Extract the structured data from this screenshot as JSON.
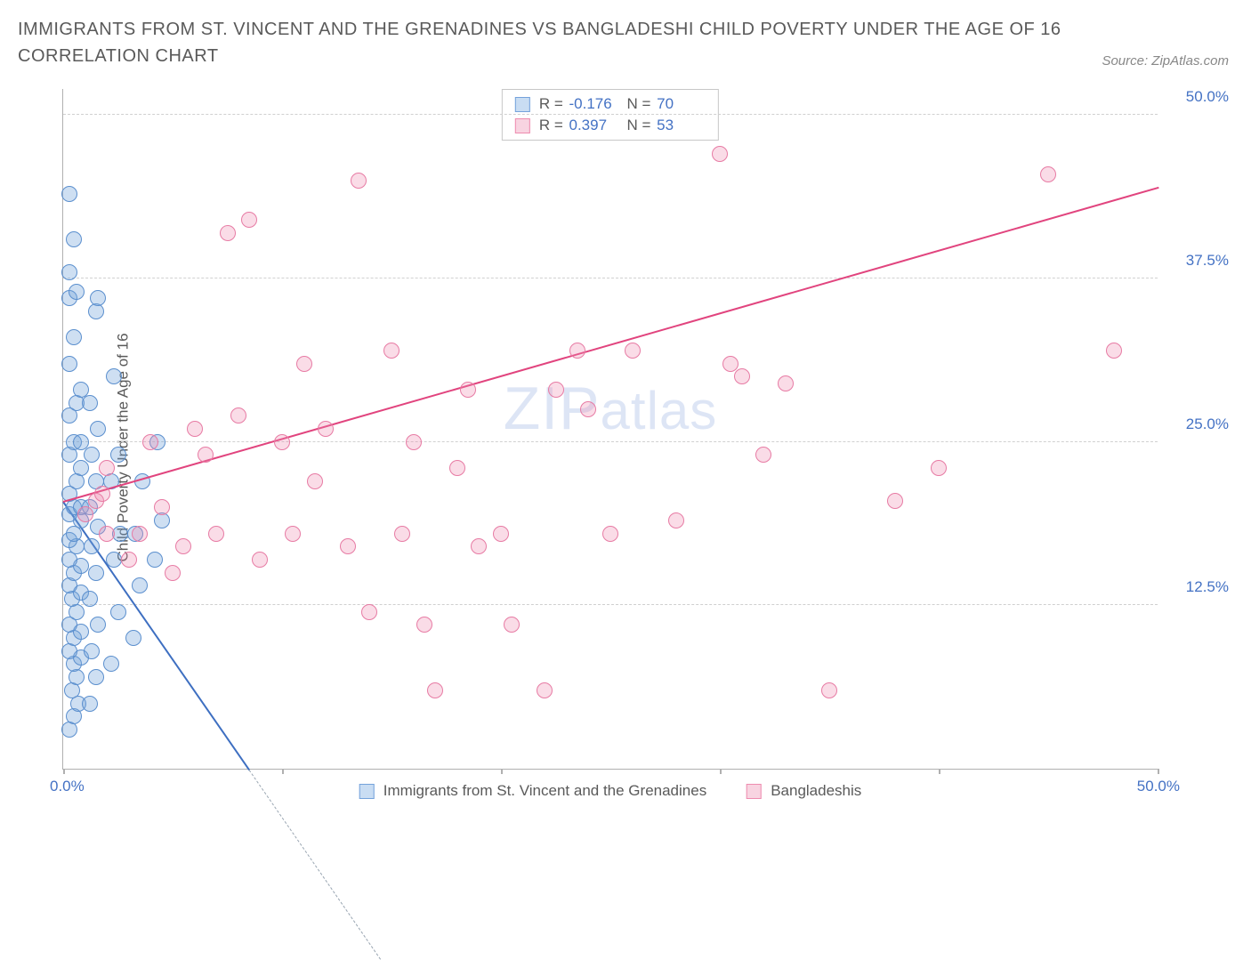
{
  "title": "IMMIGRANTS FROM ST. VINCENT AND THE GRENADINES VS BANGLADESHI CHILD POVERTY UNDER THE AGE OF 16 CORRELATION CHART",
  "source": "Source: ZipAtlas.com",
  "ylabel": "Child Poverty Under the Age of 16",
  "watermark_a": "ZIP",
  "watermark_b": "atlas",
  "chart": {
    "type": "scatter",
    "xlim": [
      0,
      50
    ],
    "ylim": [
      0,
      52
    ],
    "xticks_pct": [
      0,
      10,
      20,
      30,
      40,
      50
    ],
    "xlabel_zero": "0.0%",
    "xlabel_max": "50.0%",
    "yticks": [
      {
        "v": 12.5,
        "label": "12.5%"
      },
      {
        "v": 25.0,
        "label": "25.0%"
      },
      {
        "v": 37.5,
        "label": "37.5%"
      },
      {
        "v": 50.0,
        "label": "50.0%"
      }
    ],
    "grid_color": "#d0d0d0",
    "background_color": "#ffffff",
    "axis_color": "#b0b0b0",
    "tick_label_color": "#4472c4",
    "marker_radius": 9,
    "marker_stroke": 1.5,
    "series": [
      {
        "id": "svg_series",
        "label": "Immigrants from St. Vincent and the Grenadines",
        "fill": "rgba(116,162,219,0.35)",
        "stroke": "#5b8fce",
        "swatch_fill": "#c9ddf3",
        "swatch_stroke": "#74a2db",
        "R": "-0.176",
        "N": "70",
        "trend": {
          "x1": 0,
          "y1": 20.5,
          "x2": 8.5,
          "y2": 0,
          "color": "#3e6fc1",
          "dash_extend_x2": 8.5
        },
        "points": [
          [
            0.3,
            3
          ],
          [
            0.5,
            4
          ],
          [
            0.7,
            5
          ],
          [
            0.4,
            6
          ],
          [
            0.6,
            7
          ],
          [
            0.5,
            8
          ],
          [
            0.8,
            8.5
          ],
          [
            0.3,
            9
          ],
          [
            0.5,
            10
          ],
          [
            0.8,
            10.5
          ],
          [
            0.3,
            11
          ],
          [
            0.6,
            12
          ],
          [
            0.4,
            13
          ],
          [
            0.8,
            13.5
          ],
          [
            0.3,
            14
          ],
          [
            0.5,
            15
          ],
          [
            0.8,
            15.5
          ],
          [
            0.3,
            16
          ],
          [
            0.6,
            17
          ],
          [
            0.3,
            17.5
          ],
          [
            0.5,
            18
          ],
          [
            0.8,
            19
          ],
          [
            0.3,
            19.5
          ],
          [
            0.5,
            20
          ],
          [
            0.8,
            20
          ],
          [
            0.3,
            21
          ],
          [
            0.6,
            22
          ],
          [
            0.8,
            23
          ],
          [
            0.3,
            24
          ],
          [
            0.5,
            25
          ],
          [
            0.8,
            25
          ],
          [
            0.3,
            27
          ],
          [
            0.6,
            28
          ],
          [
            0.8,
            29
          ],
          [
            0.3,
            31
          ],
          [
            0.5,
            33
          ],
          [
            0.3,
            36
          ],
          [
            0.6,
            36.5
          ],
          [
            0.3,
            38
          ],
          [
            0.5,
            40.5
          ],
          [
            0.3,
            44
          ],
          [
            1.2,
            5
          ],
          [
            1.5,
            7
          ],
          [
            1.3,
            9
          ],
          [
            1.6,
            11
          ],
          [
            1.2,
            13
          ],
          [
            1.5,
            15
          ],
          [
            1.3,
            17
          ],
          [
            1.6,
            18.5
          ],
          [
            1.2,
            20
          ],
          [
            1.5,
            22
          ],
          [
            1.3,
            24
          ],
          [
            1.6,
            26
          ],
          [
            1.2,
            28
          ],
          [
            1.5,
            35
          ],
          [
            1.6,
            36
          ],
          [
            2.2,
            8
          ],
          [
            2.5,
            12
          ],
          [
            2.3,
            16
          ],
          [
            2.6,
            18
          ],
          [
            2.2,
            22
          ],
          [
            2.5,
            24
          ],
          [
            2.3,
            30
          ],
          [
            3.2,
            10
          ],
          [
            3.5,
            14
          ],
          [
            3.3,
            18
          ],
          [
            3.6,
            22
          ],
          [
            4.2,
            16
          ],
          [
            4.5,
            19
          ],
          [
            4.3,
            25
          ]
        ]
      },
      {
        "id": "bangladeshi_series",
        "label": "Bangladeshis",
        "fill": "rgba(238,140,175,0.3)",
        "stroke": "#e77ba4",
        "swatch_fill": "#f8d4e1",
        "swatch_stroke": "#ee8caf",
        "R": "0.397",
        "N": "53",
        "trend": {
          "x1": 0,
          "y1": 20.5,
          "x2": 50,
          "y2": 44.5,
          "color": "#e1447e"
        },
        "points": [
          [
            1,
            19.5
          ],
          [
            1.5,
            20.5
          ],
          [
            1.8,
            21
          ],
          [
            2,
            18
          ],
          [
            2,
            23
          ],
          [
            3,
            16
          ],
          [
            3.5,
            18
          ],
          [
            4,
            25
          ],
          [
            4.5,
            20
          ],
          [
            5,
            15
          ],
          [
            5.5,
            17
          ],
          [
            6,
            26
          ],
          [
            6.5,
            24
          ],
          [
            7,
            18
          ],
          [
            7.5,
            41
          ],
          [
            8,
            27
          ],
          [
            8.5,
            42
          ],
          [
            9,
            16
          ],
          [
            10,
            25
          ],
          [
            10.5,
            18
          ],
          [
            11,
            31
          ],
          [
            11.5,
            22
          ],
          [
            12,
            26
          ],
          [
            13,
            17
          ],
          [
            13.5,
            45
          ],
          [
            14,
            12
          ],
          [
            15,
            32
          ],
          [
            15.5,
            18
          ],
          [
            16,
            25
          ],
          [
            16.5,
            11
          ],
          [
            17,
            6
          ],
          [
            18,
            23
          ],
          [
            18.5,
            29
          ],
          [
            19,
            17
          ],
          [
            20,
            18
          ],
          [
            20.5,
            11
          ],
          [
            22,
            6
          ],
          [
            22.5,
            29
          ],
          [
            23.5,
            32
          ],
          [
            24,
            27.5
          ],
          [
            25,
            18
          ],
          [
            26,
            32
          ],
          [
            28,
            19
          ],
          [
            30,
            47
          ],
          [
            30.5,
            31
          ],
          [
            31,
            30
          ],
          [
            32,
            24
          ],
          [
            33,
            29.5
          ],
          [
            35,
            6
          ],
          [
            38,
            20.5
          ],
          [
            40,
            23
          ],
          [
            45,
            45.5
          ],
          [
            48,
            32
          ]
        ]
      }
    ]
  },
  "stats_box": {
    "r_label": "R =",
    "n_label": "N ="
  }
}
